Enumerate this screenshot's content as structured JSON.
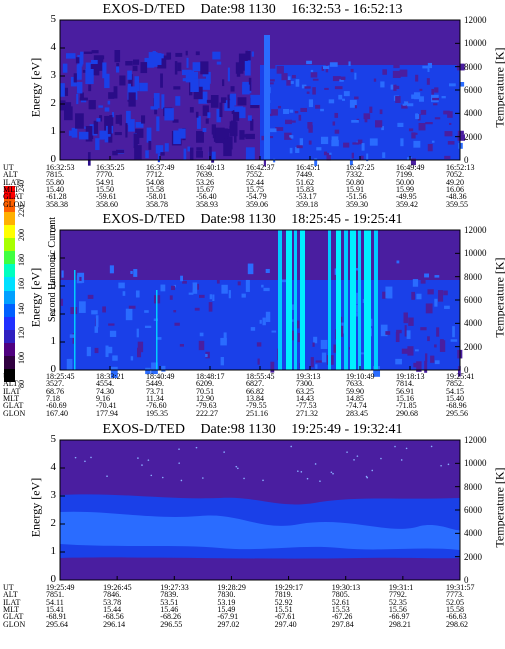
{
  "colorbar": {
    "label": "Second Harmonic Current",
    "ticks": [
      "240",
      "220",
      "200",
      "180",
      "160",
      "140",
      "120",
      "100",
      "80"
    ],
    "colors": [
      "#ff0000",
      "#ff6000",
      "#ffb000",
      "#ffff00",
      "#a8ff00",
      "#40ff40",
      "#00ffc0",
      "#00e0ff",
      "#00a0ff",
      "#0060ff",
      "#2030ff",
      "#3020c0",
      "#500080",
      "#300040",
      "#000000"
    ]
  },
  "labels": {
    "left_axis": "Energy [eV]",
    "right_axis": "Temperature [K]"
  },
  "panels": [
    {
      "title_parts": [
        "EXOS-D/TED",
        "Date:98 1130",
        "16:32:53 - 16:52:13"
      ],
      "ephem_names": [
        "UT",
        "ALT",
        "ILAT",
        "MLT",
        "GLAT",
        "GLON"
      ],
      "ephem": [
        [
          "16:32:53",
          "16:35:25",
          "16:37:49",
          "16:40:13",
          "16:42:37",
          "16:45:1",
          "16:47:25",
          "16:49:49",
          "16:52:13"
        ],
        [
          "7815.",
          "7770.",
          "7712.",
          "7639.",
          "7552.",
          "7449.",
          "7332.",
          "7199.",
          "7052."
        ],
        [
          "55.80",
          "54.91",
          "54.08",
          "53.26",
          "52.44",
          "51.62",
          "50.80",
          "50.00",
          "49.20"
        ],
        [
          "15.40",
          "15.50",
          "15.58",
          "15.67",
          "15.75",
          "15.83",
          "15.91",
          "15.99",
          "16.06"
        ],
        [
          "-61.28",
          "-59.61",
          "-58.01",
          "-56.40",
          "-54.79",
          "-53.17",
          "-51.56",
          "-49.95",
          "-48.36"
        ],
        [
          "358.38",
          "358.60",
          "358.78",
          "358.93",
          "359.06",
          "359.18",
          "359.30",
          "359.42",
          "359.55"
        ]
      ]
    },
    {
      "title_parts": [
        "EXOS-D/TED",
        "Date:98 1130",
        "18:25:45 - 19:25:41"
      ],
      "ephem_names": [
        "UT",
        "ALT",
        "ILAT",
        "MLT",
        "GLAT",
        "GLON"
      ],
      "ephem": [
        [
          "18:25:45",
          "18:33:21",
          "18:40:49",
          "18:48:17",
          "18:55:45",
          "19:3:13",
          "19:10:49",
          "19:18:13",
          "19:25:41"
        ],
        [
          "3527.",
          "4554.",
          "5449.",
          "6209.",
          "6827.",
          "7300.",
          "7633.",
          "7814.",
          "7852."
        ],
        [
          "68.76",
          "74.30",
          "73.71",
          "70.51",
          "66.82",
          "63.25",
          "59.90",
          "56.91",
          "54.15"
        ],
        [
          "7.18",
          "9.16",
          "11.34",
          "12.90",
          "13.84",
          "14.43",
          "14.85",
          "15.16",
          "15.40"
        ],
        [
          "-60.69",
          "-70.41",
          "-76.60",
          "-79.63",
          "-79.55",
          "-77.53",
          "-74.74",
          "-71.85",
          "-68.96"
        ],
        [
          "167.40",
          "177.94",
          "195.35",
          "222.27",
          "251.16",
          "271.32",
          "283.45",
          "290.68",
          "295.56"
        ]
      ]
    },
    {
      "title_parts": [
        "EXOS-D/TED",
        "Date:98 1130",
        "19:25:49 - 19:32:41"
      ],
      "ephem_names": [
        "UT",
        "ALT",
        "ILAT",
        "MLT",
        "GLAT",
        "GLON"
      ],
      "ephem": [
        [
          "19:25:49",
          "19:26:45",
          "19:27:33",
          "19:28:29",
          "19:29:17",
          "19:30:13",
          "19:31:1",
          "19:31:57"
        ],
        [
          "7851.",
          "7846.",
          "7839.",
          "7830.",
          "7819.",
          "7805.",
          "7792.",
          "7773."
        ],
        [
          "54.11",
          "53.78",
          "53.51",
          "53.19",
          "52.92",
          "52.61",
          "52.35",
          "52.05"
        ],
        [
          "15.41",
          "15.44",
          "15.46",
          "15.49",
          "15.51",
          "15.53",
          "15.56",
          "15.58"
        ],
        [
          "-68.91",
          "-68.56",
          "-68.26",
          "-67.91",
          "-67.61",
          "-67.26",
          "-66.97",
          "-66.63"
        ],
        [
          "295.64",
          "296.14",
          "296.55",
          "297.02",
          "297.40",
          "297.84",
          "298.21",
          "298.62"
        ]
      ]
    }
  ],
  "chart_data": [
    {
      "type": "heatmap",
      "title": "EXOS-D/TED Date:98 1130 16:32:53 - 16:52:13",
      "ylabel": "Energy [eV]",
      "y2label": "Temperature [K]",
      "ylim": [
        0,
        5
      ],
      "y2lim": [
        0,
        12000
      ],
      "yticks": [
        0,
        1,
        2,
        3,
        4,
        5
      ],
      "y2ticks": [
        0,
        2000,
        4000,
        6000,
        8000,
        10000,
        12000
      ],
      "x_ticks": [
        "16:32:53",
        "16:35:25",
        "16:37:49",
        "16:40:13",
        "16:42:37",
        "16:45:1",
        "16:47:25",
        "16:49:49",
        "16:52:13"
      ]
    },
    {
      "type": "heatmap",
      "title": "EXOS-D/TED Date:98 1130 18:25:45 - 19:25:41",
      "ylabel": "Energy [eV]",
      "y2label": "Temperature [K]",
      "ylim": [
        0,
        5
      ],
      "y2lim": [
        0,
        12000
      ],
      "yticks": [
        0,
        1,
        2,
        3,
        4,
        5
      ],
      "y2ticks": [
        0,
        2000,
        4000,
        6000,
        8000,
        10000,
        12000
      ],
      "x_ticks": [
        "18:25:45",
        "18:33:21",
        "18:40:49",
        "18:48:17",
        "18:55:45",
        "19:3:13",
        "19:10:49",
        "19:18:13",
        "19:25:41"
      ]
    },
    {
      "type": "heatmap",
      "title": "EXOS-D/TED Date:98 1130 19:25:49 - 19:32:41",
      "ylabel": "Energy [eV]",
      "y2label": "Temperature [K]",
      "ylim": [
        0,
        5
      ],
      "y2lim": [
        0,
        12000
      ],
      "yticks": [
        0,
        1,
        2,
        3,
        4,
        5
      ],
      "y2ticks": [
        0,
        2000,
        4000,
        6000,
        8000,
        10000,
        12000
      ],
      "x_ticks": [
        "19:25:49",
        "19:26:45",
        "19:27:33",
        "19:28:29",
        "19:29:17",
        "19:30:13",
        "19:31:1",
        "19:31:57"
      ]
    }
  ]
}
